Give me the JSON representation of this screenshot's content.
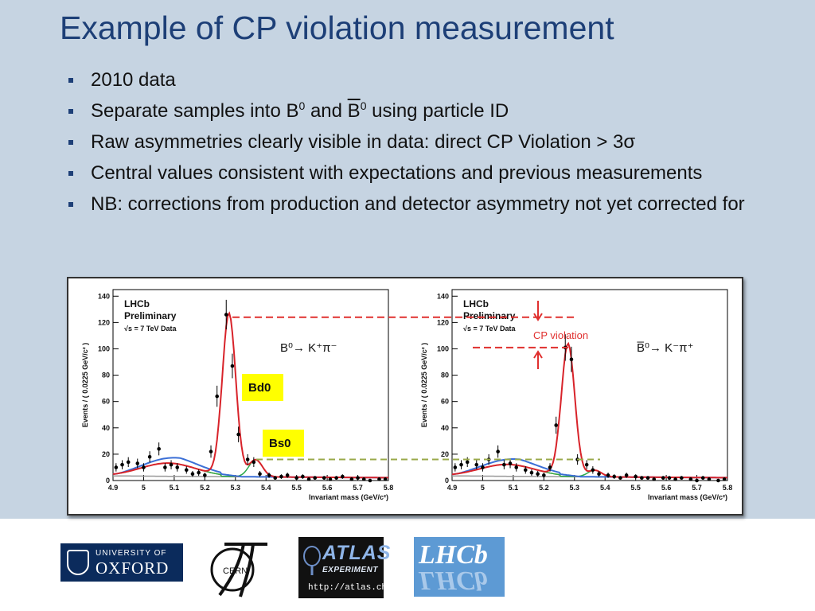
{
  "slide": {
    "title": "Example of CP violation measurement",
    "bullets": {
      "b1": "2010 data",
      "b2": {
        "t1": "Separate samples into B",
        "s1": "0",
        "t2": " and ",
        "t3": "B",
        "s2": "0",
        "t4": " using particle ID"
      },
      "b3": "Raw asymmetries clearly visible in data: direct CP Violation > 3σ",
      "b4": "Central values consistent with expectations and previous measurements",
      "b5": "NB:  corrections from production and detector asymmetry not yet corrected for"
    }
  },
  "chart_data": [
    {
      "type": "scatter",
      "title": "",
      "label_lhcb": "LHCb",
      "label_prelim": "Preliminary",
      "label_energy": "√s = 7 TeV Data",
      "decay": "B⁰→ K⁺π⁻",
      "xlabel": "Invariant mass (GeV/c²)",
      "ylabel": "Events / ( 0.0225 GeV/c² )",
      "xlim": [
        4.9,
        5.8
      ],
      "ylim": [
        0,
        145
      ],
      "x_ticks": [
        "4.9",
        "5",
        "5.1",
        "5.2",
        "5.3",
        "5.4",
        "5.5",
        "5.6",
        "5.7",
        "5.8"
      ],
      "y_ticks": [
        "0",
        "20",
        "40",
        "60",
        "80",
        "100",
        "120",
        "140"
      ],
      "x": [
        4.91,
        4.93,
        4.95,
        4.98,
        5.0,
        5.02,
        5.05,
        5.07,
        5.09,
        5.11,
        5.14,
        5.16,
        5.18,
        5.2,
        5.22,
        5.24,
        5.27,
        5.29,
        5.31,
        5.34,
        5.36,
        5.38,
        5.41,
        5.43,
        5.45,
        5.47,
        5.5,
        5.52,
        5.54,
        5.56,
        5.59,
        5.61,
        5.63,
        5.65,
        5.68,
        5.7,
        5.72,
        5.74,
        5.77,
        5.79
      ],
      "y": [
        10,
        12,
        14,
        13,
        10,
        18,
        24,
        10,
        12,
        10,
        8,
        5,
        6,
        4,
        22,
        64,
        126,
        87,
        35,
        16,
        14,
        5,
        4,
        2,
        3,
        4,
        2,
        3,
        1,
        2,
        2,
        1,
        2,
        3,
        1,
        2,
        1,
        0,
        1,
        1
      ],
      "curves": {
        "total": "red",
        "signal_Bs": "green",
        "combinatorial": "orange",
        "background": "blue"
      },
      "annotations": {
        "bd_label": "Bd0",
        "bs_label": "Bs0"
      }
    },
    {
      "type": "scatter",
      "title": "",
      "label_lhcb": "LHCb",
      "label_prelim": "Preliminary",
      "label_energy": "√s = 7 TeV Data",
      "decay": "B̅⁰→ K⁻π⁺",
      "xlabel": "Invariant mass (GeV/c²)",
      "ylabel": "Events / ( 0.0225 GeV/c² )",
      "xlim": [
        4.9,
        5.8
      ],
      "ylim": [
        0,
        145
      ],
      "x_ticks": [
        "4.9",
        "5",
        "5.1",
        "5.2",
        "5.3",
        "5.4",
        "5.5",
        "5.6",
        "5.7",
        "5.8"
      ],
      "y_ticks": [
        "0",
        "20",
        "40",
        "60",
        "80",
        "100",
        "120",
        "140"
      ],
      "x": [
        4.91,
        4.93,
        4.95,
        4.98,
        5.0,
        5.02,
        5.05,
        5.07,
        5.09,
        5.11,
        5.14,
        5.16,
        5.18,
        5.2,
        5.22,
        5.24,
        5.27,
        5.29,
        5.31,
        5.34,
        5.36,
        5.38,
        5.41,
        5.43,
        5.45,
        5.47,
        5.5,
        5.52,
        5.54,
        5.56,
        5.59,
        5.61,
        5.63,
        5.65,
        5.68,
        5.7,
        5.72,
        5.74,
        5.77,
        5.79
      ],
      "y": [
        10,
        12,
        14,
        12,
        10,
        16,
        22,
        12,
        13,
        10,
        8,
        6,
        5,
        4,
        10,
        42,
        101,
        92,
        16,
        12,
        8,
        5,
        4,
        3,
        2,
        4,
        3,
        2,
        2,
        1,
        2,
        2,
        1,
        2,
        1,
        0,
        2,
        1,
        0,
        1
      ],
      "annotation_cp": "CP violation"
    }
  ],
  "logos": {
    "oxford_line1": "UNIVERSITY OF",
    "oxford_line2": "OXFORD",
    "cern": "CERN",
    "atlas_line1": "ATLAS",
    "atlas_line2": "EXPERIMENT",
    "atlas_url": "http://atlas.ch",
    "lhcb": "LHCb"
  }
}
